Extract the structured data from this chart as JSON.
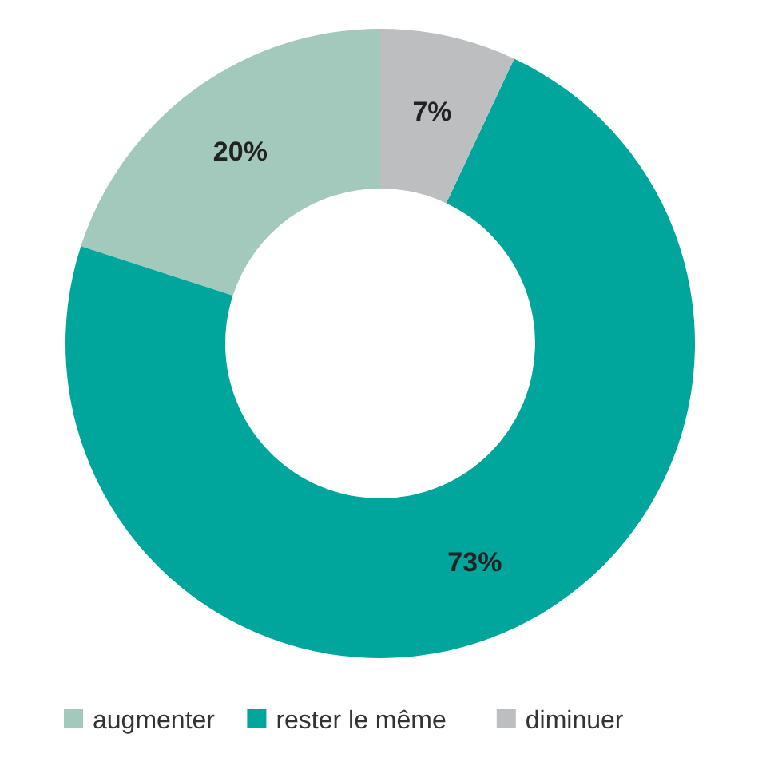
{
  "chart_data": {
    "type": "donut",
    "categories": [
      "augmenter",
      "rester le même",
      "diminuer"
    ],
    "values": [
      20,
      73,
      7
    ],
    "colors": [
      "#a3c9bd",
      "#00a69c",
      "#bdbec0"
    ],
    "value_labels": [
      "20%",
      "73%",
      "7%"
    ],
    "legend": "bottom"
  }
}
